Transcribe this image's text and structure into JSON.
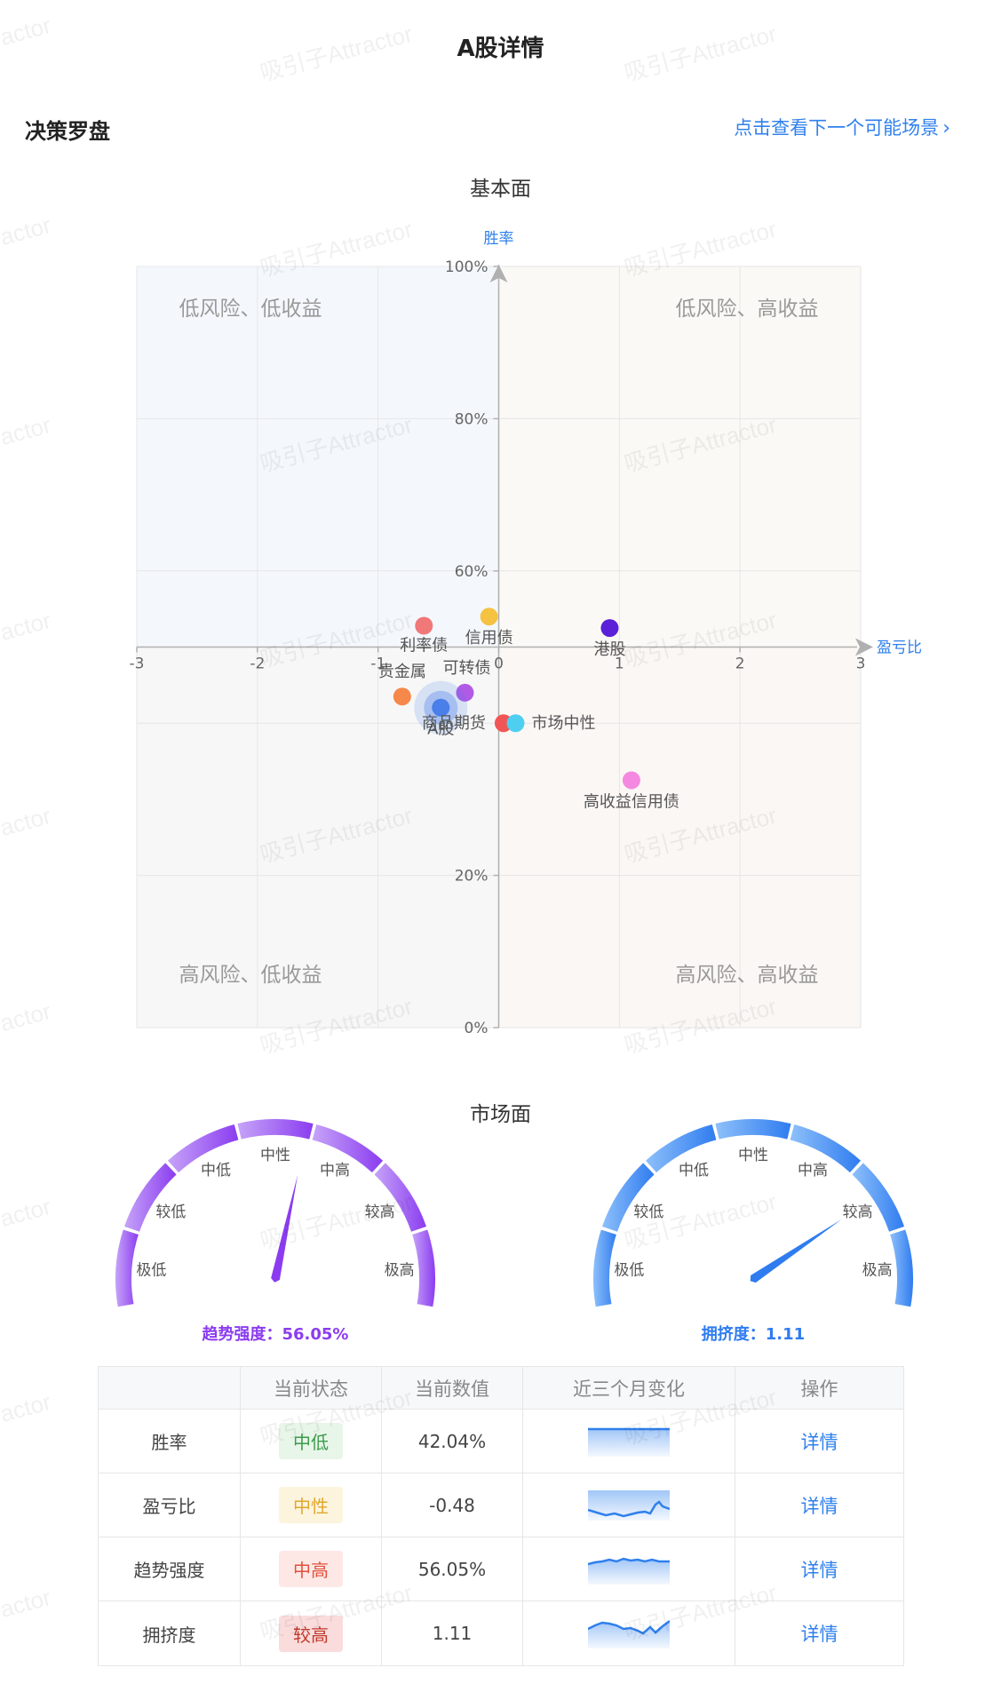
{
  "header": {
    "title": "A股详情"
  },
  "section": {
    "title": "决策罗盘",
    "next_link": "点击查看下一个可能场景"
  },
  "fundamental": {
    "subtitle": "基本面",
    "quadrants": [
      "低风险、低收益",
      "低风险、高收益",
      "高风险、低收益",
      "高风险、高收益"
    ],
    "colors": {
      "q_top_left": "#f4f8fd",
      "q_top_right": "#fbf9f5",
      "q_bottom_left": "#f7f7f7",
      "q_bottom_right": "#fbf7f5",
      "axis_label": "#2f80ed"
    }
  },
  "chart_data": [
    {
      "type": "scatter",
      "title": "基本面",
      "xlabel": "盈亏比",
      "ylabel": "胜率",
      "xlim": [
        -3,
        3
      ],
      "ylim": [
        0,
        100
      ],
      "x_ticks": [
        "-3",
        "-2",
        "-1",
        "0",
        "1",
        "2",
        "3"
      ],
      "y_ticks": [
        "100%",
        "80%",
        "60%",
        "20%",
        "0%"
      ],
      "points": [
        {
          "name": "利率债",
          "x": -0.62,
          "y": 52.8,
          "color": "#f07878"
        },
        {
          "name": "信用债",
          "x": -0.08,
          "y": 54.0,
          "color": "#f5c242"
        },
        {
          "name": "港股",
          "x": 0.92,
          "y": 52.5,
          "color": "#5b21d8"
        },
        {
          "name": "贵金属",
          "x": -0.8,
          "y": 43.5,
          "color": "#f5884a"
        },
        {
          "name": "可转债",
          "x": -0.28,
          "y": 44.0,
          "color": "#b05ae6"
        },
        {
          "name": "A股",
          "x": -0.48,
          "y": 42.04,
          "color": "#4a7ee8",
          "highlight": true
        },
        {
          "name": "商品期货",
          "x": 0.04,
          "y": 40.0,
          "color": "#f25555"
        },
        {
          "name": "市场中性",
          "x": 0.14,
          "y": 40.0,
          "color": "#4ecff0"
        },
        {
          "name": "高收益信用债",
          "x": 1.1,
          "y": 32.5,
          "color": "#f48ae0"
        }
      ]
    }
  ],
  "market": {
    "subtitle": "市场面",
    "gauge_ticks": [
      "极低",
      "较低",
      "中低",
      "中性",
      "中高",
      "较高",
      "极高"
    ],
    "gauges": [
      {
        "label": "趋势强度：56.05%",
        "value": 56.05,
        "color": "#8b3cf0",
        "light": "#c6a4f8"
      },
      {
        "label": "拥挤度：1.11",
        "value": 78,
        "color": "#2f7cf0",
        "light": "#8ec0fa"
      }
    ]
  },
  "table": {
    "headers": [
      "",
      "当前状态",
      "当前数值",
      "近三个月变化",
      "操作"
    ],
    "rows": [
      {
        "name": "胜率",
        "status": "中低",
        "value": "42.04%",
        "action": "详情",
        "badge_bg": "#e8f5e9",
        "badge_fg": "#3b9b4a"
      },
      {
        "name": "盈亏比",
        "status": "中性",
        "value": "-0.48",
        "action": "详情",
        "badge_bg": "#fdf4dd",
        "badge_fg": "#e0a82e"
      },
      {
        "name": "趋势强度",
        "status": "中高",
        "value": "56.05%",
        "action": "详情",
        "badge_bg": "#fde8e6",
        "badge_fg": "#e0523d"
      },
      {
        "name": "拥挤度",
        "status": "较高",
        "value": "1.11",
        "action": "详情",
        "badge_bg": "#fadcdc",
        "badge_fg": "#c0392b"
      }
    ]
  }
}
